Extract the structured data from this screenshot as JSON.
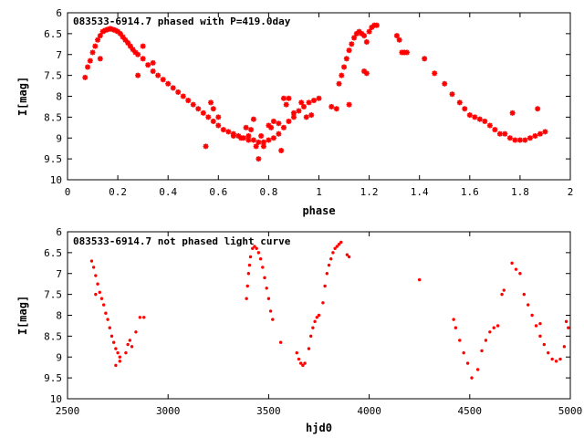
{
  "colors": {
    "points": "#ff0000",
    "frame": "#000000"
  },
  "chart_data": [
    {
      "type": "scatter",
      "title": "083533-6914.7 phased with P=419.0day",
      "xlabel": "phase",
      "ylabel": "I[mag]",
      "xlim": [
        0,
        2
      ],
      "ylim": [
        6,
        10
      ],
      "y_inverted": true,
      "xticks": [
        "0",
        "0.2",
        "0.4",
        "0.6",
        "0.8",
        "1",
        "1.2",
        "1.4",
        "1.6",
        "1.8",
        "2"
      ],
      "yticks": [
        "6",
        "6.5",
        "7",
        "7.5",
        "8",
        "8.5",
        "9",
        "9.5",
        "10"
      ],
      "marker": "star",
      "points": [
        [
          0.07,
          7.55
        ],
        [
          0.08,
          7.3
        ],
        [
          0.09,
          7.15
        ],
        [
          0.1,
          6.95
        ],
        [
          0.11,
          6.8
        ],
        [
          0.12,
          6.65
        ],
        [
          0.13,
          6.55
        ],
        [
          0.14,
          6.45
        ],
        [
          0.15,
          6.42
        ],
        [
          0.16,
          6.4
        ],
        [
          0.17,
          6.38
        ],
        [
          0.18,
          6.4
        ],
        [
          0.19,
          6.42
        ],
        [
          0.2,
          6.45
        ],
        [
          0.21,
          6.5
        ],
        [
          0.22,
          6.58
        ],
        [
          0.23,
          6.65
        ],
        [
          0.24,
          6.72
        ],
        [
          0.25,
          6.8
        ],
        [
          0.26,
          6.88
        ],
        [
          0.27,
          6.95
        ],
        [
          0.28,
          7.0
        ],
        [
          0.3,
          7.1
        ],
        [
          0.32,
          7.25
        ],
        [
          0.34,
          7.4
        ],
        [
          0.36,
          7.5
        ],
        [
          0.38,
          7.6
        ],
        [
          0.4,
          7.7
        ],
        [
          0.42,
          7.8
        ],
        [
          0.44,
          7.9
        ],
        [
          0.46,
          8.0
        ],
        [
          0.48,
          8.1
        ],
        [
          0.5,
          8.2
        ],
        [
          0.52,
          8.3
        ],
        [
          0.54,
          8.4
        ],
        [
          0.56,
          8.5
        ],
        [
          0.58,
          8.6
        ],
        [
          0.6,
          8.7
        ],
        [
          0.62,
          8.8
        ],
        [
          0.64,
          8.85
        ],
        [
          0.66,
          8.9
        ],
        [
          0.68,
          8.95
        ],
        [
          0.7,
          9.0
        ],
        [
          0.72,
          9.05
        ],
        [
          0.74,
          9.05
        ],
        [
          0.76,
          9.1
        ],
        [
          0.78,
          9.1
        ],
        [
          0.8,
          9.05
        ],
        [
          0.82,
          9.0
        ],
        [
          0.84,
          8.9
        ],
        [
          0.86,
          8.75
        ],
        [
          0.88,
          8.6
        ],
        [
          0.9,
          8.5
        ],
        [
          0.92,
          8.35
        ],
        [
          0.94,
          8.25
        ],
        [
          0.96,
          8.15
        ],
        [
          0.98,
          8.1
        ],
        [
          1.0,
          8.05
        ],
        [
          0.13,
          7.1
        ],
        [
          0.28,
          7.5
        ],
        [
          0.3,
          6.8
        ],
        [
          0.34,
          7.2
        ],
        [
          0.55,
          9.2
        ],
        [
          0.57,
          8.15
        ],
        [
          0.58,
          8.3
        ],
        [
          0.6,
          8.5
        ],
        [
          0.66,
          8.95
        ],
        [
          0.69,
          9.0
        ],
        [
          0.71,
          8.75
        ],
        [
          0.72,
          8.95
        ],
        [
          0.73,
          8.8
        ],
        [
          0.74,
          8.55
        ],
        [
          0.75,
          9.2
        ],
        [
          0.76,
          9.5
        ],
        [
          0.77,
          8.95
        ],
        [
          0.78,
          9.2
        ],
        [
          0.8,
          8.7
        ],
        [
          0.81,
          8.75
        ],
        [
          0.82,
          8.6
        ],
        [
          0.84,
          8.65
        ],
        [
          0.85,
          9.3
        ],
        [
          0.86,
          8.05
        ],
        [
          0.87,
          8.2
        ],
        [
          0.88,
          8.05
        ],
        [
          0.9,
          8.4
        ],
        [
          0.93,
          8.15
        ],
        [
          0.95,
          8.5
        ],
        [
          0.97,
          8.45
        ],
        [
          1.05,
          8.25
        ],
        [
          1.07,
          8.3
        ],
        [
          1.08,
          7.7
        ],
        [
          1.09,
          7.5
        ],
        [
          1.1,
          7.3
        ],
        [
          1.11,
          7.1
        ],
        [
          1.12,
          6.9
        ],
        [
          1.13,
          6.75
        ],
        [
          1.14,
          6.6
        ],
        [
          1.15,
          6.5
        ],
        [
          1.16,
          6.45
        ],
        [
          1.17,
          6.5
        ],
        [
          1.18,
          6.55
        ],
        [
          1.19,
          6.7
        ],
        [
          1.2,
          6.45
        ],
        [
          1.21,
          6.35
        ],
        [
          1.22,
          6.3
        ],
        [
          1.23,
          6.3
        ],
        [
          1.12,
          8.2
        ],
        [
          1.18,
          7.4
        ],
        [
          1.19,
          7.45
        ],
        [
          1.31,
          6.55
        ],
        [
          1.32,
          6.65
        ],
        [
          1.33,
          6.95
        ],
        [
          1.34,
          6.95
        ],
        [
          1.35,
          6.95
        ],
        [
          1.42,
          7.1
        ],
        [
          1.46,
          7.45
        ],
        [
          1.5,
          7.7
        ],
        [
          1.53,
          7.95
        ],
        [
          1.56,
          8.15
        ],
        [
          1.58,
          8.3
        ],
        [
          1.6,
          8.45
        ],
        [
          1.62,
          8.5
        ],
        [
          1.64,
          8.55
        ],
        [
          1.66,
          8.6
        ],
        [
          1.68,
          8.7
        ],
        [
          1.7,
          8.8
        ],
        [
          1.72,
          8.9
        ],
        [
          1.74,
          8.9
        ],
        [
          1.76,
          9.0
        ],
        [
          1.78,
          9.05
        ],
        [
          1.8,
          9.05
        ],
        [
          1.82,
          9.05
        ],
        [
          1.84,
          9.0
        ],
        [
          1.86,
          8.95
        ],
        [
          1.88,
          8.9
        ],
        [
          1.77,
          8.4
        ],
        [
          1.87,
          8.3
        ],
        [
          1.9,
          8.85
        ]
      ]
    },
    {
      "type": "scatter",
      "title": "083533-6914.7 not phased light curve",
      "xlabel": "hjd0",
      "ylabel": "I[mag]",
      "xlim": [
        2500,
        5000
      ],
      "ylim": [
        6,
        10
      ],
      "y_inverted": true,
      "xticks": [
        "2500",
        "3000",
        "3500",
        "4000",
        "4500",
        "5000"
      ],
      "yticks": [
        "6",
        "6.5",
        "7",
        "7.5",
        "8",
        "8.5",
        "9",
        "9.5",
        "10"
      ],
      "marker": "dot",
      "points": [
        [
          2620,
          6.7
        ],
        [
          2630,
          6.85
        ],
        [
          2640,
          7.05
        ],
        [
          2650,
          7.25
        ],
        [
          2660,
          7.45
        ],
        [
          2670,
          7.6
        ],
        [
          2680,
          7.75
        ],
        [
          2690,
          7.95
        ],
        [
          2700,
          8.1
        ],
        [
          2710,
          8.3
        ],
        [
          2720,
          8.5
        ],
        [
          2730,
          8.65
        ],
        [
          2740,
          8.8
        ],
        [
          2750,
          8.9
        ],
        [
          2760,
          9.0
        ],
        [
          2640,
          7.5
        ],
        [
          2740,
          9.2
        ],
        [
          2760,
          9.1
        ],
        [
          2790,
          8.9
        ],
        [
          2800,
          8.7
        ],
        [
          2810,
          8.6
        ],
        [
          2820,
          8.75
        ],
        [
          2840,
          8.4
        ],
        [
          2860,
          8.05
        ],
        [
          2880,
          8.05
        ],
        [
          3390,
          7.6
        ],
        [
          3395,
          7.3
        ],
        [
          3400,
          7.0
        ],
        [
          3405,
          6.8
        ],
        [
          3410,
          6.6
        ],
        [
          3420,
          6.4
        ],
        [
          3430,
          6.35
        ],
        [
          3440,
          6.4
        ],
        [
          3450,
          6.5
        ],
        [
          3460,
          6.65
        ],
        [
          3470,
          6.85
        ],
        [
          3480,
          7.1
        ],
        [
          3490,
          7.35
        ],
        [
          3500,
          7.6
        ],
        [
          3510,
          7.9
        ],
        [
          3520,
          8.1
        ],
        [
          3560,
          8.65
        ],
        [
          3640,
          8.9
        ],
        [
          3650,
          9.05
        ],
        [
          3660,
          9.15
        ],
        [
          3670,
          9.2
        ],
        [
          3680,
          9.15
        ],
        [
          3700,
          8.8
        ],
        [
          3710,
          8.5
        ],
        [
          3720,
          8.3
        ],
        [
          3730,
          8.15
        ],
        [
          3740,
          8.05
        ],
        [
          3750,
          8.0
        ],
        [
          3770,
          7.7
        ],
        [
          3780,
          7.3
        ],
        [
          3790,
          7.0
        ],
        [
          3800,
          6.8
        ],
        [
          3810,
          6.65
        ],
        [
          3820,
          6.5
        ],
        [
          3830,
          6.4
        ],
        [
          3840,
          6.35
        ],
        [
          3850,
          6.3
        ],
        [
          3860,
          6.25
        ],
        [
          3890,
          6.55
        ],
        [
          3900,
          6.6
        ],
        [
          4250,
          7.15
        ],
        [
          4420,
          8.1
        ],
        [
          4430,
          8.3
        ],
        [
          4450,
          8.6
        ],
        [
          4470,
          8.9
        ],
        [
          4490,
          9.15
        ],
        [
          4510,
          9.5
        ],
        [
          4540,
          9.3
        ],
        [
          4560,
          8.85
        ],
        [
          4580,
          8.6
        ],
        [
          4600,
          8.4
        ],
        [
          4620,
          8.3
        ],
        [
          4640,
          8.25
        ],
        [
          4660,
          7.5
        ],
        [
          4670,
          7.4
        ],
        [
          4710,
          6.75
        ],
        [
          4730,
          6.9
        ],
        [
          4750,
          7.0
        ],
        [
          4770,
          7.5
        ],
        [
          4790,
          7.75
        ],
        [
          4810,
          8.0
        ],
        [
          4830,
          8.25
        ],
        [
          4850,
          8.5
        ],
        [
          4870,
          8.7
        ],
        [
          4890,
          8.9
        ],
        [
          4910,
          9.05
        ],
        [
          4930,
          9.1
        ],
        [
          4950,
          9.05
        ],
        [
          4970,
          8.75
        ],
        [
          4990,
          8.3
        ],
        [
          4980,
          8.15
        ],
        [
          4850,
          8.2
        ]
      ]
    }
  ]
}
